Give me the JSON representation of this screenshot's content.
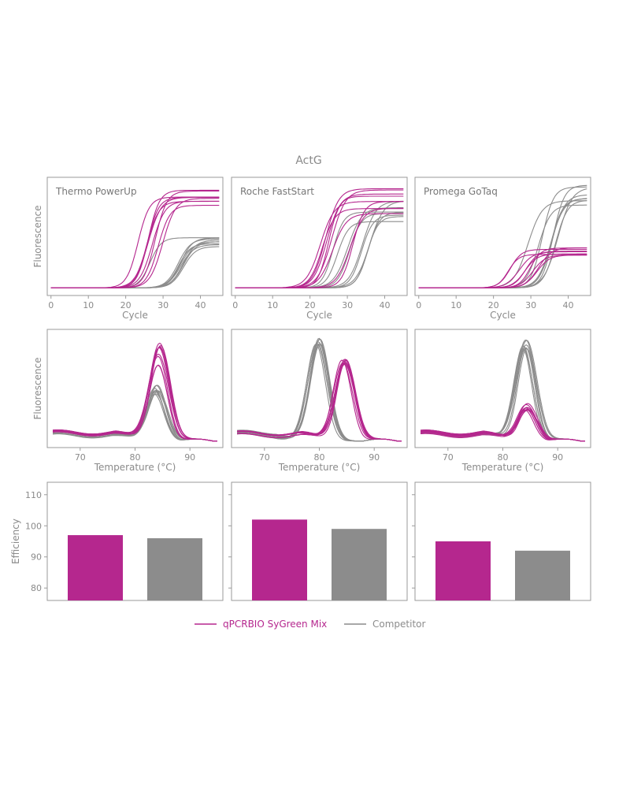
{
  "title": "ActG",
  "colors": {
    "sygreen": "#b5278e",
    "competitor": "#8c8c8c",
    "frame": "#9a9a9a",
    "text": "#8a8a8a"
  },
  "legend": {
    "items": [
      {
        "label": "qPCRBIO SyGreen Mix",
        "color": "#b5278e"
      },
      {
        "label": "Competitor",
        "color": "#8c8c8c"
      }
    ]
  },
  "chart_data": [
    {
      "type": "line",
      "row": "amplification",
      "panel_label": "Thermo PowerUp",
      "xlabel": "Cycle",
      "ylabel": "Fluorescence",
      "xlim": [
        -1,
        46
      ],
      "ylim": [
        0,
        1.05
      ],
      "xticks": [
        0,
        10,
        20,
        30,
        40
      ],
      "series": [
        {
          "group": "sygreen",
          "midpoints": [
            23,
            26,
            29
          ],
          "plateau": [
            0.8,
            0.97
          ]
        },
        {
          "group": "competitor",
          "midpoints": [
            27,
            31,
            35
          ],
          "plateau": [
            0.4,
            0.5
          ]
        }
      ]
    },
    {
      "type": "line",
      "row": "amplification",
      "panel_label": "Roche FastStart",
      "xlabel": "Cycle",
      "ylabel": "",
      "xlim": [
        -1,
        46
      ],
      "ylim": [
        0,
        1.05
      ],
      "xticks": [
        0,
        10,
        20,
        30,
        40
      ],
      "series": [
        {
          "group": "sygreen",
          "midpoints": [
            24,
            27,
            31
          ],
          "plateau": [
            0.72,
            0.98
          ]
        },
        {
          "group": "competitor",
          "midpoints": [
            27,
            31,
            35
          ],
          "plateau": [
            0.65,
            0.88
          ]
        }
      ]
    },
    {
      "type": "line",
      "row": "amplification",
      "panel_label": "Promega GoTaq",
      "xlabel": "Cycle",
      "ylabel": "",
      "xlim": [
        -1,
        46
      ],
      "ylim": [
        0,
        1.05
      ],
      "xticks": [
        0,
        10,
        20,
        30,
        40
      ],
      "series": [
        {
          "group": "sygreen",
          "midpoints": [
            25,
            28,
            31
          ],
          "plateau": [
            0.32,
            0.4
          ]
        },
        {
          "group": "competitor",
          "midpoints": [
            28,
            32,
            36
          ],
          "plateau": [
            0.78,
            1.02
          ]
        }
      ]
    },
    {
      "type": "line",
      "row": "melt",
      "panel_label": "",
      "xlabel": "Temperature (°C)",
      "ylabel": "Fluorescence",
      "xlim": [
        64,
        96
      ],
      "ylim": [
        0,
        1.05
      ],
      "xticks": [
        70,
        80,
        90
      ],
      "series": [
        {
          "group": "sygreen",
          "peak_temperature": 84.3,
          "peak_height": [
            0.72,
            0.99
          ]
        },
        {
          "group": "competitor",
          "peak_temperature": 83.8,
          "peak_height": [
            0.45,
            0.55
          ]
        }
      ]
    },
    {
      "type": "line",
      "row": "melt",
      "panel_label": "",
      "xlabel": "Temperature (°C)",
      "ylabel": "",
      "xlim": [
        64,
        96
      ],
      "ylim": [
        0,
        1.05
      ],
      "xticks": [
        70,
        80,
        90
      ],
      "series": [
        {
          "group": "sygreen",
          "peak_temperature": 84.5,
          "peak_height": [
            0.75,
            0.82
          ]
        },
        {
          "group": "competitor",
          "peak_temperature": 79.8,
          "peak_height": [
            0.92,
            1.0
          ]
        }
      ]
    },
    {
      "type": "line",
      "row": "melt",
      "panel_label": "",
      "xlabel": "Temperature (°C)",
      "ylabel": "",
      "xlim": [
        64,
        96
      ],
      "ylim": [
        0,
        1.05
      ],
      "xticks": [
        70,
        80,
        90
      ],
      "series": [
        {
          "group": "sygreen",
          "peak_temperature": 84.3,
          "peak_height": [
            0.3,
            0.37
          ]
        },
        {
          "group": "competitor",
          "peak_temperature": 84.0,
          "peak_height": [
            0.9,
            1.0
          ]
        }
      ]
    },
    {
      "type": "bar",
      "row": "efficiency",
      "ylabel": "Efficiency",
      "ylim": [
        76,
        114
      ],
      "yticks": [
        80,
        90,
        100,
        110
      ],
      "bars": [
        {
          "group": "sygreen",
          "value": 97
        },
        {
          "group": "competitor",
          "value": 96
        }
      ]
    },
    {
      "type": "bar",
      "row": "efficiency",
      "ylabel": "",
      "ylim": [
        76,
        114
      ],
      "yticks": [
        80,
        90,
        100,
        110
      ],
      "bars": [
        {
          "group": "sygreen",
          "value": 102
        },
        {
          "group": "competitor",
          "value": 99
        }
      ]
    },
    {
      "type": "bar",
      "row": "efficiency",
      "ylabel": "",
      "ylim": [
        76,
        114
      ],
      "yticks": [
        80,
        90,
        100,
        110
      ],
      "bars": [
        {
          "group": "sygreen",
          "value": 95
        },
        {
          "group": "competitor",
          "value": 92
        }
      ]
    }
  ]
}
